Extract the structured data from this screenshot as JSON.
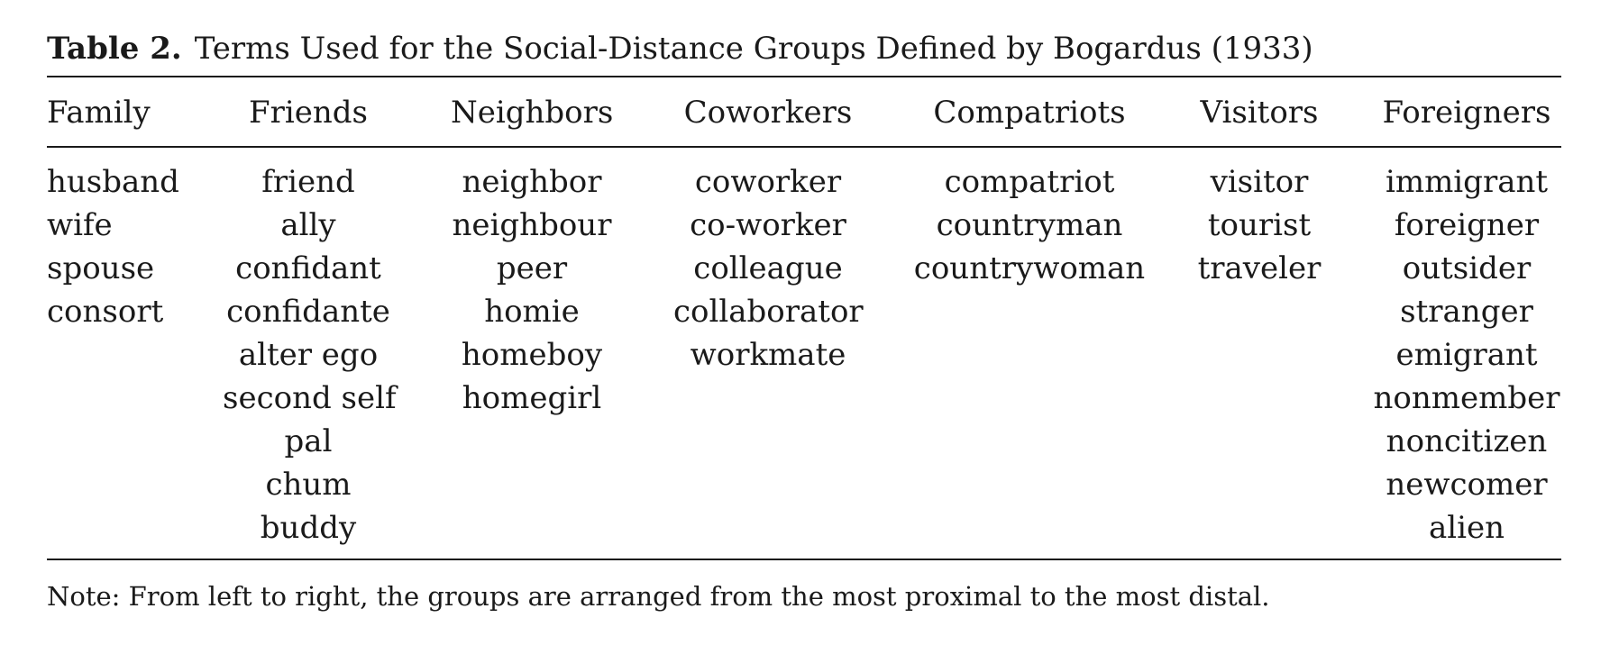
{
  "caption": {
    "label": "Table 2.",
    "text": "Terms Used for the Social-Distance Groups Defined by Bogardus (1933)"
  },
  "table": {
    "columns": [
      {
        "header": "Family",
        "terms": [
          "husband",
          "wife",
          "spouse",
          "consort"
        ]
      },
      {
        "header": "Friends",
        "terms": [
          "friend",
          "ally",
          "confidant",
          "confidante",
          "alter ego",
          "second self",
          "pal",
          "chum",
          "buddy"
        ]
      },
      {
        "header": "Neighbors",
        "terms": [
          "neighbor",
          "neighbour",
          "peer",
          "homie",
          "homeboy",
          "homegirl"
        ]
      },
      {
        "header": "Coworkers",
        "terms": [
          "coworker",
          "co-worker",
          "colleague",
          "collaborator",
          "workmate"
        ]
      },
      {
        "header": "Compatriots",
        "terms": [
          "compatriot",
          "countryman",
          "countrywoman"
        ]
      },
      {
        "header": "Visitors",
        "terms": [
          "visitor",
          "tourist",
          "traveler"
        ]
      },
      {
        "header": "Foreigners",
        "terms": [
          "immigrant",
          "foreigner",
          "outsider",
          "stranger",
          "emigrant",
          "nonmember",
          "noncitizen",
          "newcomer",
          "alien"
        ]
      }
    ]
  },
  "note": "Note: From left to right, the groups are arranged from the most proximal to the most distal."
}
